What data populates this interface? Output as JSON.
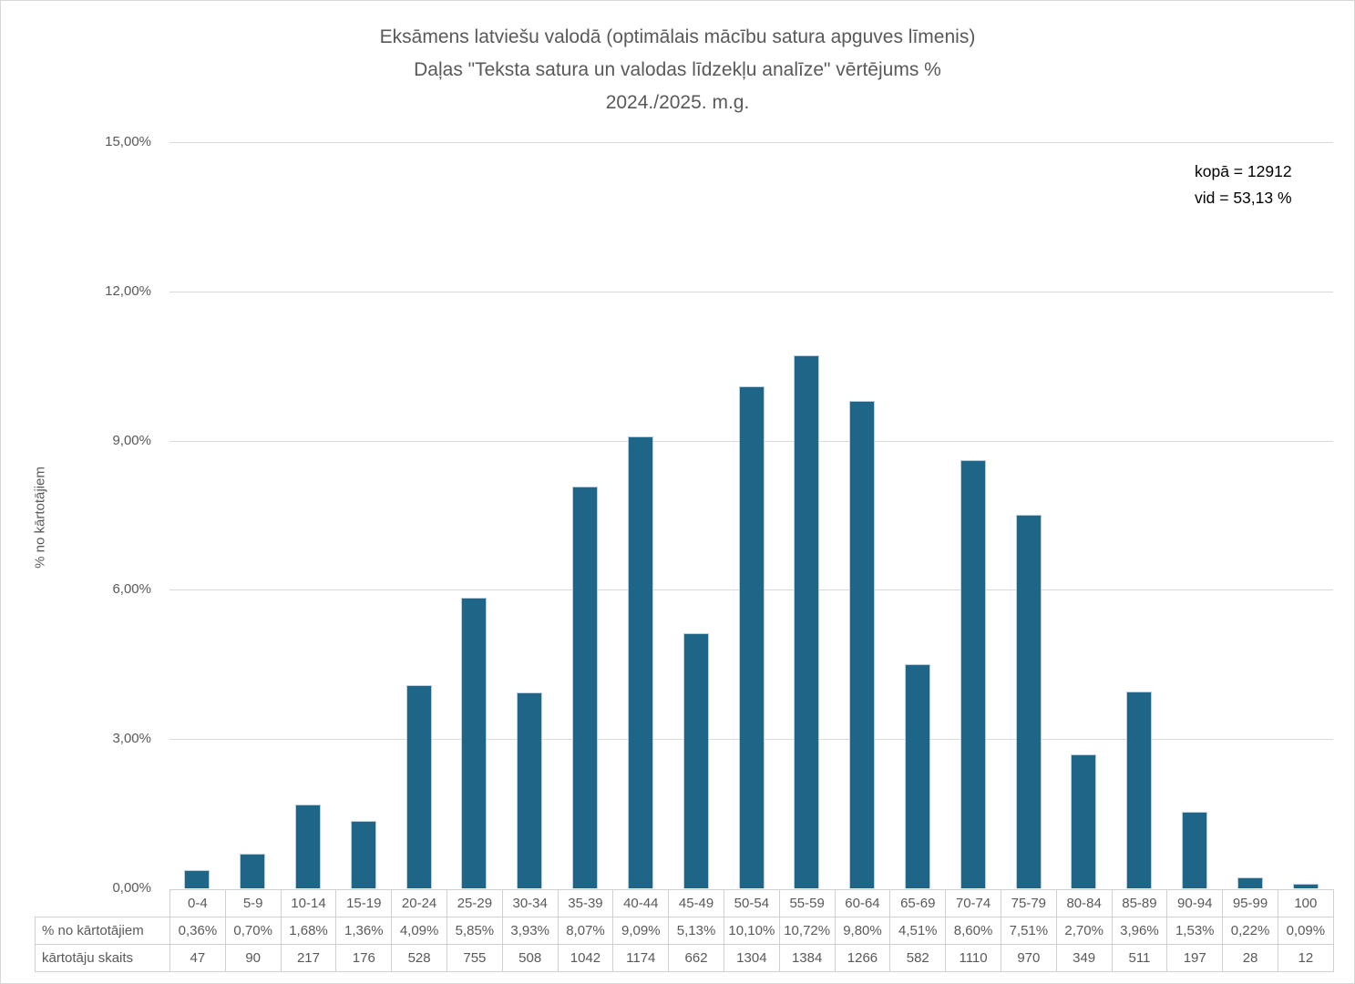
{
  "chart_data": {
    "type": "bar",
    "title_lines": [
      "Eksāmens latviešu valodā (optimālais mācību satura apguves līmenis)",
      "Daļas \"Teksta satura un valodas līdzekļu analīze\" vērtējums %",
      "2024./2025. m.g."
    ],
    "ylabel": "% no kārtotājiem",
    "xlabel": "",
    "ylim": [
      0,
      15
    ],
    "grid": true,
    "legend_position": "none",
    "y_ticks": [
      "15,00%",
      "12,00%",
      "9,00%",
      "6,00%",
      "3,00%",
      "0,00%"
    ],
    "categories": [
      "0-4",
      "5-9",
      "10-14",
      "15-19",
      "20-24",
      "25-29",
      "30-34",
      "35-39",
      "40-44",
      "45-49",
      "50-54",
      "55-59",
      "60-64",
      "65-69",
      "70-74",
      "75-79",
      "80-84",
      "85-89",
      "90-94",
      "95-99",
      "100"
    ],
    "values_percent": [
      0.36,
      0.7,
      1.68,
      1.36,
      4.09,
      5.85,
      3.93,
      8.07,
      9.09,
      5.13,
      10.1,
      10.72,
      9.8,
      4.51,
      8.6,
      7.51,
      2.7,
      3.96,
      1.53,
      0.22,
      0.09
    ],
    "values_percent_labels": [
      "0,36%",
      "0,70%",
      "1,68%",
      "1,36%",
      "4,09%",
      "5,85%",
      "3,93%",
      "8,07%",
      "9,09%",
      "5,13%",
      "10,10%",
      "10,72%",
      "9,80%",
      "4,51%",
      "8,60%",
      "7,51%",
      "2,70%",
      "3,96%",
      "1,53%",
      "0,22%",
      "0,09%"
    ],
    "counts": [
      "47",
      "90",
      "217",
      "176",
      "528",
      "755",
      "508",
      "1042",
      "1174",
      "662",
      "1304",
      "1384",
      "1266",
      "582",
      "1110",
      "970",
      "349",
      "511",
      "197",
      "28",
      "12"
    ],
    "table_row_labels": [
      "% no kārtotājiem",
      "kārtotāju skaits"
    ],
    "annotation": {
      "line1": "kopā = 12912",
      "line2": "vid = 53,13 %"
    },
    "colors": {
      "bar": "#1F6587",
      "gridline": "#D9D9D9",
      "text": "#595959",
      "annotation_text": "#000000",
      "table_border": "#D0D0D0"
    }
  }
}
